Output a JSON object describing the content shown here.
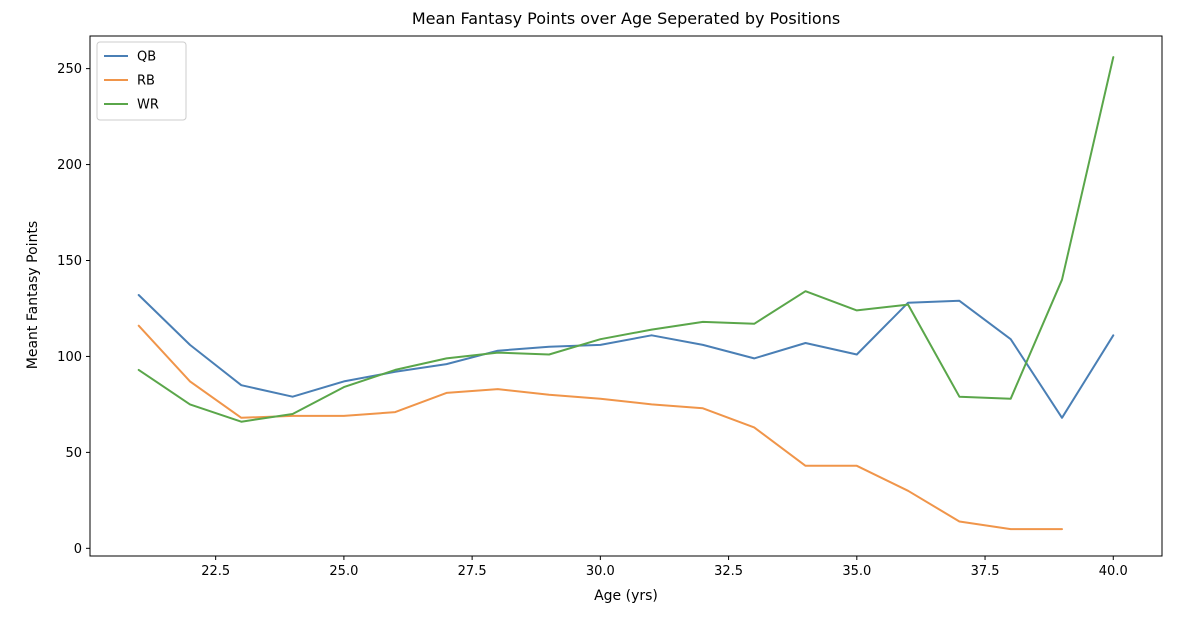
{
  "chart_data": {
    "type": "line",
    "title": "Mean Fantasy Points over Age Seperated by Positions",
    "xlabel": "Age (yrs)",
    "ylabel": "Meant Fantasy Points",
    "xlim": [
      20.05,
      40.95
    ],
    "ylim": [
      -4,
      267
    ],
    "xticks": [
      22.5,
      25.0,
      27.5,
      30.0,
      32.5,
      35.0,
      37.5,
      40.0
    ],
    "xtick_labels": [
      "22.5",
      "25.0",
      "27.5",
      "30.0",
      "32.5",
      "35.0",
      "37.5",
      "40.0"
    ],
    "yticks": [
      0,
      50,
      100,
      150,
      200,
      250
    ],
    "ytick_labels": [
      "0",
      "50",
      "100",
      "150",
      "200",
      "250"
    ],
    "grid": false,
    "legend_position": "top-left",
    "series": [
      {
        "name": "QB",
        "color": "#4a7fb5",
        "x": [
          21,
          22,
          23,
          24,
          25,
          26,
          27,
          28,
          29,
          30,
          31,
          32,
          33,
          34,
          35,
          36,
          37,
          38,
          39,
          40
        ],
        "values": [
          132,
          106,
          85,
          79,
          87,
          92,
          96,
          103,
          105,
          106,
          111,
          106,
          99,
          107,
          101,
          128,
          129,
          109,
          68,
          111
        ]
      },
      {
        "name": "RB",
        "color": "#f0954a",
        "x": [
          21,
          22,
          23,
          24,
          25,
          26,
          27,
          28,
          29,
          30,
          31,
          32,
          33,
          34,
          35,
          36,
          37,
          38,
          39
        ],
        "values": [
          116,
          87,
          68,
          69,
          69,
          71,
          81,
          83,
          80,
          78,
          75,
          73,
          63,
          43,
          43,
          30,
          14,
          10,
          10
        ]
      },
      {
        "name": "WR",
        "color": "#5aa64a",
        "x": [
          21,
          22,
          23,
          24,
          25,
          26,
          27,
          28,
          29,
          30,
          31,
          32,
          33,
          34,
          35,
          36,
          37,
          38,
          39,
          40
        ],
        "values": [
          93,
          75,
          66,
          70,
          84,
          93,
          99,
          102,
          101,
          109,
          114,
          118,
          117,
          134,
          124,
          127,
          79,
          78,
          140,
          256
        ]
      }
    ]
  }
}
